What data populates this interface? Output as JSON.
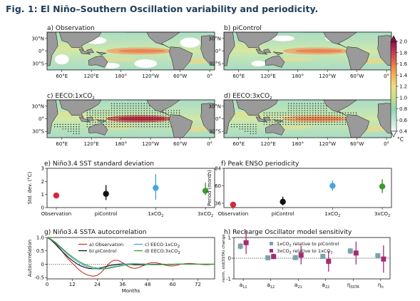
{
  "figure": {
    "title": "Fig. 1: El Niño–Southern Oscillation variability and periodicity."
  },
  "maps": {
    "panels": [
      {
        "id": "a",
        "label": "a) Observation"
      },
      {
        "id": "b",
        "label": "b) piControl"
      },
      {
        "id": "c",
        "label": "c) EECO:1xCO",
        "sub": "2"
      },
      {
        "id": "d",
        "label": "d) EECO:3xCO",
        "sub": "2"
      }
    ],
    "lon_ticks": [
      "60°E",
      "120°E",
      "180°",
      "120°W",
      "60°W",
      "0°"
    ],
    "lat_ticks": [
      "30°N",
      "0°",
      "30°S"
    ],
    "colorbar": {
      "ticks": [
        "2.0",
        "1.8",
        "1.6",
        "1.4",
        "1.2",
        "1.0",
        "0.8",
        "0.6",
        "0.4"
      ],
      "unit": "°C",
      "min": 0.4,
      "max": 2.0
    }
  },
  "chart_data": [
    {
      "id": "e",
      "type": "scatter",
      "title": "e) Niño3.4 SST standard deviation",
      "ylabel": "Std. dev. (°C)",
      "categories": [
        "Observation",
        "piControl",
        "1xCO2",
        "3xCO2"
      ],
      "values": [
        0.92,
        1.05,
        1.5,
        1.28
      ],
      "error_low": [
        null,
        0.58,
        0.6,
        0.95
      ],
      "error_high": [
        null,
        1.72,
        2.55,
        1.9
      ],
      "colors": [
        "#d62839",
        "#111111",
        "#4aa3df",
        "#3a9a2f"
      ],
      "ylim": [
        0,
        3
      ],
      "yticks": [
        "0",
        "1",
        "2",
        "3"
      ]
    },
    {
      "id": "f",
      "type": "scatter",
      "title": "f) Peak ENSO periodicity",
      "ylabel": "Period (month)",
      "categories": [
        "Observation",
        "piControl",
        "1xCO2",
        "3xCO2"
      ],
      "values": [
        34,
        38,
        60,
        59
      ],
      "error_low": [
        null,
        33,
        53,
        50
      ],
      "error_high": [
        null,
        45,
        67,
        69
      ],
      "colors": [
        "#d62839",
        "#111111",
        "#4aa3df",
        "#3a9a2f"
      ],
      "ylim": [
        30,
        84
      ],
      "yticks": [
        "36",
        "60",
        "84"
      ]
    },
    {
      "id": "g",
      "type": "line",
      "title": "g) Niño3.4 SSTA autocorrelation",
      "xlabel": "Months",
      "ylabel": "Autocorrelation",
      "xlim": [
        0,
        80
      ],
      "ylim": [
        -0.55,
        1.0
      ],
      "xticks": [
        "0",
        "12",
        "24",
        "36",
        "48",
        "60",
        "72"
      ],
      "yticks": [
        "-0.5",
        "0",
        "0.5",
        "1.0"
      ],
      "x": [
        0,
        2,
        4,
        6,
        8,
        10,
        12,
        14,
        16,
        18,
        20,
        22,
        24,
        26,
        28,
        30,
        32,
        34,
        36,
        38,
        40,
        42,
        44,
        46,
        48,
        50,
        52,
        54,
        56,
        58,
        60,
        62,
        64,
        66,
        68,
        70,
        72,
        74,
        76,
        78,
        80
      ],
      "series": [
        {
          "name": "a) Observation",
          "color": "#c0392b",
          "values": [
            1.0,
            0.93,
            0.78,
            0.6,
            0.4,
            0.2,
            0.04,
            -0.12,
            -0.26,
            -0.36,
            -0.42,
            -0.45,
            -0.42,
            -0.3,
            -0.12,
            0.06,
            0.15,
            0.14,
            0.06,
            -0.05,
            -0.13,
            -0.16,
            -0.12,
            -0.05,
            0.02,
            0.06,
            0.06,
            0.02,
            -0.03,
            -0.06,
            -0.07,
            -0.04,
            0.0,
            0.02,
            0.03,
            0.02,
            0.0,
            -0.01,
            -0.02,
            -0.01,
            0.0
          ]
        },
        {
          "name": "b) piControl",
          "color": "#111111",
          "values": [
            1.0,
            0.9,
            0.75,
            0.58,
            0.42,
            0.27,
            0.14,
            0.03,
            -0.06,
            -0.12,
            -0.16,
            -0.17,
            -0.16,
            -0.13,
            -0.09,
            -0.05,
            -0.02,
            0.0,
            0.01,
            0.0,
            -0.01,
            -0.02,
            -0.02,
            -0.02,
            -0.01,
            0.0,
            0.0,
            0.0,
            0.0,
            -0.01,
            -0.01,
            0.0,
            0.0,
            0.0,
            0.0,
            0.0,
            0.0,
            0.0,
            0.0,
            0.0,
            0.0
          ]
        },
        {
          "name": "c) EECO:1xCO2",
          "color": "#4aa3df",
          "values": [
            1.0,
            0.92,
            0.8,
            0.65,
            0.5,
            0.36,
            0.23,
            0.12,
            0.02,
            -0.06,
            -0.12,
            -0.16,
            -0.18,
            -0.18,
            -0.16,
            -0.12,
            -0.08,
            -0.04,
            -0.01,
            0.01,
            0.02,
            0.02,
            0.01,
            0.0,
            -0.01,
            -0.02,
            -0.02,
            -0.02,
            -0.01,
            0.0,
            0.0,
            0.01,
            0.01,
            0.0,
            0.0,
            0.0,
            0.0,
            0.0,
            0.0,
            0.0,
            0.0
          ]
        },
        {
          "name": "d) EECO:3xCO2",
          "color": "#3a9a2f",
          "values": [
            1.0,
            0.93,
            0.82,
            0.68,
            0.54,
            0.4,
            0.28,
            0.17,
            0.07,
            -0.01,
            -0.07,
            -0.12,
            -0.15,
            -0.17,
            -0.17,
            -0.15,
            -0.12,
            -0.08,
            -0.05,
            -0.02,
            0.0,
            0.01,
            0.01,
            0.01,
            0.0,
            -0.01,
            -0.01,
            -0.01,
            -0.01,
            0.0,
            0.0,
            0.0,
            0.0,
            0.0,
            0.0,
            0.0,
            0.0,
            0.0,
            0.0,
            0.0,
            0.0
          ]
        }
      ]
    },
    {
      "id": "h",
      "type": "scatter",
      "title": "h) Recharge Oscillator model sensitivity",
      "ylabel": "norm. std(SSTA) change",
      "ylim": [
        -1,
        1
      ],
      "yticks": [
        "-1",
        "0",
        "1"
      ],
      "categories": [
        "a",
        "a",
        "a",
        "a",
        "η",
        "η"
      ],
      "category_subs": [
        "11",
        "12",
        "21",
        "22",
        "SSTA",
        "h"
      ],
      "series": [
        {
          "name": "1xCO2 relative to piControl",
          "color": "#7aa5a8",
          "values": [
            0.58,
            0.02,
            0.03,
            0.09,
            0.35,
            0.12
          ],
          "error_low": [
            0.42,
            -0.06,
            -0.06,
            0.0,
            0.2,
            0.03
          ],
          "error_high": [
            0.74,
            0.1,
            0.12,
            0.18,
            0.5,
            0.21
          ]
        },
        {
          "name": "3xCO2 relative to 1xCO2",
          "color": "#a32c71",
          "values": [
            0.75,
            0.08,
            0.15,
            -0.15,
            0.25,
            -0.04
          ],
          "error_low": [
            0.2,
            -0.05,
            -0.3,
            -0.65,
            -0.3,
            -0.7
          ],
          "error_high": [
            1.3,
            0.22,
            0.6,
            0.35,
            0.8,
            0.62
          ]
        }
      ]
    }
  ]
}
